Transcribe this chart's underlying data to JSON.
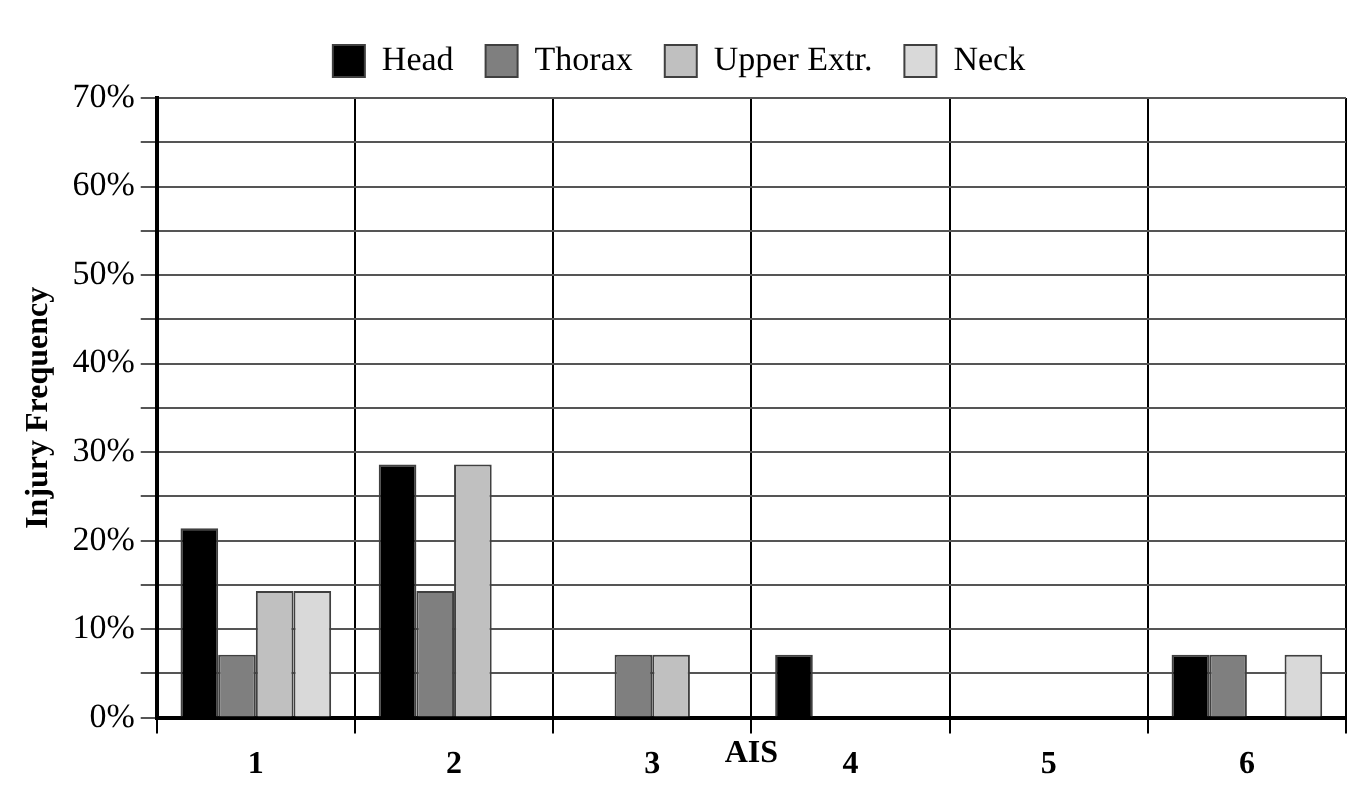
{
  "chart_data": {
    "type": "bar",
    "ylabel": "Injury Frequency",
    "xlabel": "AIS",
    "categories": [
      "1",
      "2",
      "3",
      "4",
      "5",
      "6"
    ],
    "series": [
      {
        "name": "Head",
        "color": "#000000",
        "values": [
          21.4,
          28.6,
          0,
          7.1,
          0,
          7.1
        ]
      },
      {
        "name": "Thorax",
        "color": "#7f7f7f",
        "values": [
          7.1,
          14.3,
          7.1,
          0,
          0,
          7.1
        ]
      },
      {
        "name": "Upper Extr.",
        "color": "#c0c0c0",
        "values": [
          14.3,
          28.6,
          7.1,
          0,
          0,
          0
        ]
      },
      {
        "name": "Neck",
        "color": "#d9d9d9",
        "values": [
          14.3,
          0,
          0,
          0,
          0,
          7.1
        ]
      }
    ],
    "ylim": [
      0,
      70
    ],
    "yticks": [
      {
        "value": 0,
        "label": "0%"
      },
      {
        "value": 5,
        "label": null
      },
      {
        "value": 10,
        "label": "10%"
      },
      {
        "value": 15,
        "label": null
      },
      {
        "value": 20,
        "label": "20%"
      },
      {
        "value": 25,
        "label": null
      },
      {
        "value": 30,
        "label": "30%"
      },
      {
        "value": 35,
        "label": null
      },
      {
        "value": 40,
        "label": "40%"
      },
      {
        "value": 45,
        "label": null
      },
      {
        "value": 50,
        "label": "50%"
      },
      {
        "value": 55,
        "label": null
      },
      {
        "value": 60,
        "label": "60%"
      },
      {
        "value": 65,
        "label": null
      },
      {
        "value": 70,
        "label": "70%"
      }
    ],
    "grid": true,
    "legend": "top"
  }
}
